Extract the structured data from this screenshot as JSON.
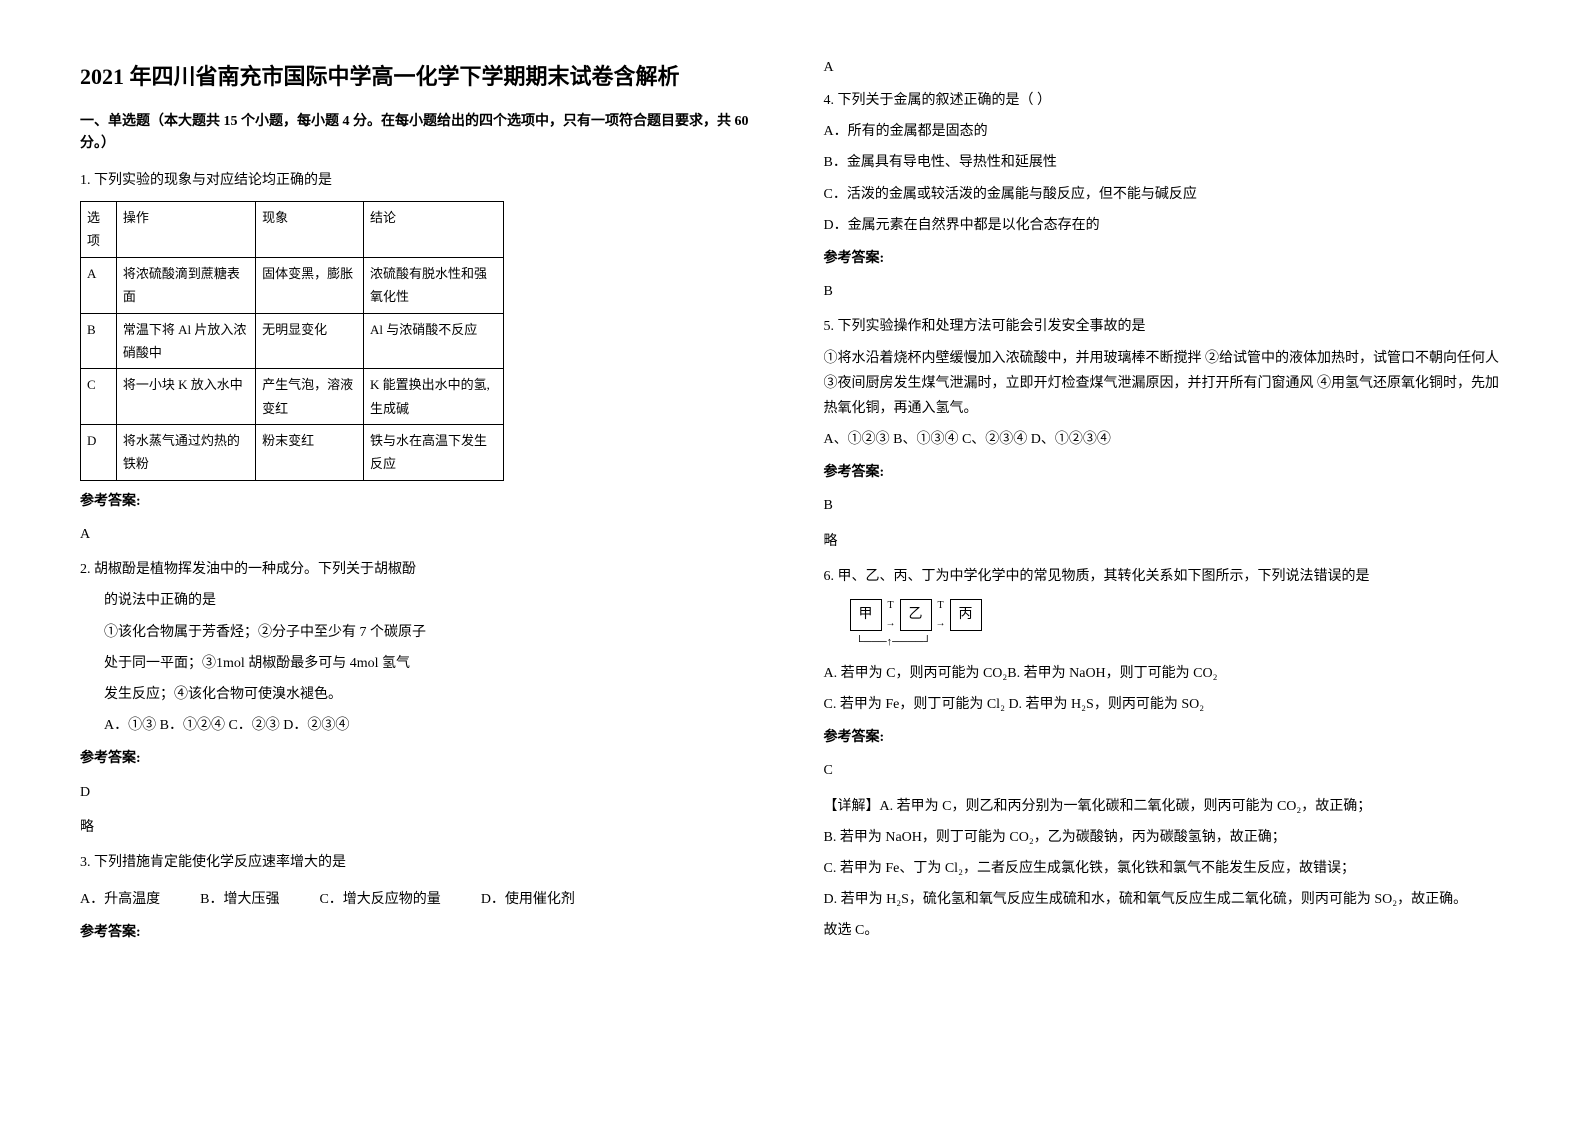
{
  "title": "2021 年四川省南充市国际中学高一化学下学期期末试卷含解析",
  "section1": "一、单选题（本大题共 15 个小题，每小题 4 分。在每小题给出的四个选项中，只有一项符合题目要求，共 60 分。）",
  "q1": {
    "stem": "1. 下列实验的现象与对应结论均正确的是",
    "table": {
      "headers": [
        "选项",
        "操作",
        "现象",
        "结论"
      ],
      "rows": [
        [
          "A",
          "将浓硫酸滴到蔗糖表面",
          "固体变黑，膨胀",
          "浓硫酸有脱水性和强氧化性"
        ],
        [
          "B",
          "常温下将 Al 片放入浓硝酸中",
          "无明显变化",
          "Al 与浓硝酸不反应"
        ],
        [
          "C",
          "将一小块 K 放入水中",
          "产生气泡，溶液变红",
          "K 能置换出水中的氢, 生成碱"
        ],
        [
          "D",
          "将水蒸气通过灼热的铁粉",
          "粉末变红",
          "铁与水在高温下发生反应"
        ]
      ]
    },
    "answerLabel": "参考答案:",
    "answer": "A"
  },
  "q2": {
    "stem": "2. 胡椒酚是植物挥发油中的一种成分。下列关于胡椒酚",
    "line2": "的说法中正确的是",
    "line3": "①该化合物属于芳香烃；②分子中至少有 7 个碳原子",
    "line4": "处于同一平面；③1mol 胡椒酚最多可与 4mol 氢气",
    "line5": "发生反应；④该化合物可使溴水褪色。",
    "opts": "A．①③  B．①②④ C．②③      D．②③④",
    "answerLabel": "参考答案:",
    "answer": "D",
    "extra": "略"
  },
  "q3": {
    "stem": "3. 下列措施肯定能使化学反应速率增大的是",
    "optA": "A．升高温度",
    "optB": "B．增大压强",
    "optC": "C．增大反应物的量",
    "optD": "D．使用催化剂",
    "answerLabel": "参考答案:",
    "answer": "A"
  },
  "q4": {
    "stem": "4. 下列关于金属的叙述正确的是（           ）",
    "optA": "A．所有的金属都是固态的",
    "optB": "B．金属具有导电性、导热性和延展性",
    "optC": "C．活泼的金属或较活泼的金属能与酸反应，但不能与碱反应",
    "optD": "D．金属元素在自然界中都是以化合态存在的",
    "answerLabel": "参考答案:",
    "answer": "B"
  },
  "q5": {
    "stem": "5. 下列实验操作和处理方法可能会引发安全事故的是",
    "body": "①将水沿着烧杯内壁缓慢加入浓硫酸中，并用玻璃棒不断搅拌 ②给试管中的液体加热时，试管口不朝向任何人 ③夜间厨房发生煤气泄漏时，立即开灯检查煤气泄漏原因，并打开所有门窗通风 ④用氢气还原氧化铜时，先加热氧化铜，再通入氢气。",
    "opts": "A、①②③       B、①③④        C、②③④        D、①②③④",
    "answerLabel": "参考答案:",
    "answer": "B",
    "extra": "略"
  },
  "q6": {
    "stem": "6. 甲、乙、丙、丁为中学化学中的常见物质，其转化关系如下图所示，下列说法错误的是",
    "diagram": {
      "n1": "甲",
      "n2": "乙",
      "n3": "丙",
      "t": "T"
    },
    "optA": "A. 若甲为 C，则丙可能为 CO₂B. 若甲为 NaOH，则丁可能为 CO₂",
    "optC": "C. 若甲为 Fe，则丁可能为 Cl₂ D. 若甲为 H₂S，则丙可能为 SO₂",
    "answerLabel": "参考答案:",
    "answer": "C",
    "exp1": "【详解】A. 若甲为 C，则乙和丙分别为一氧化碳和二氧化碳，则丙可能为 CO₂，故正确；",
    "exp2": "B. 若甲为 NaOH，则丁可能为 CO₂，乙为碳酸钠，丙为碳酸氢钠，故正确；",
    "exp3": "C. 若甲为 Fe、丁为 Cl₂，二者反应生成氯化铁，氯化铁和氯气不能发生反应，故错误；",
    "exp4": "D. 若甲为 H₂S，硫化氢和氧气反应生成硫和水，硫和氧气反应生成二氧化硫，则丙可能为 SO₂，故正确。",
    "exp5": "故选 C。"
  }
}
